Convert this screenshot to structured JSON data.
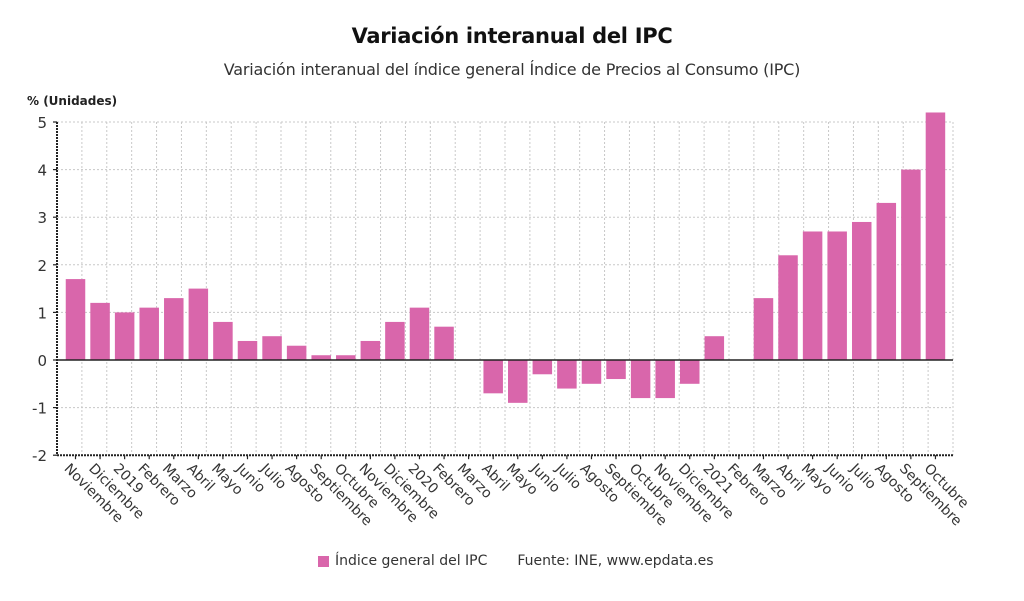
{
  "colors": {
    "bar": "#d966ab",
    "grid": "#c8c8c8",
    "axis": "#222222"
  },
  "legend": {
    "series_label": "Índice general del IPC",
    "source": "Fuente: INE, www.epdata.es"
  },
  "chart_data": {
    "type": "bar",
    "title": "Variación interanual del IPC",
    "subtitle": "Variación interanual del índice general Índice de Precios al Consumo (IPC)",
    "ylabel": "% (Unidades)",
    "xlabel": "",
    "ylim": [
      -2,
      5
    ],
    "yticks": [
      5,
      4,
      3,
      2,
      1,
      0,
      -1,
      -2
    ],
    "grid": true,
    "legend_position": "bottom",
    "categories": [
      "Noviembre",
      "Diciembre",
      "2019",
      "Febrero",
      "Marzo",
      "Abril",
      "Mayo",
      "Junio",
      "Julio",
      "Agosto",
      "Septiembre",
      "Octubre",
      "Noviembre",
      "Diciembre",
      "2020",
      "Febrero",
      "Marzo",
      "Abril",
      "Mayo",
      "Junio",
      "Julio",
      "Agosto",
      "Septiembre",
      "Octubre",
      "Noviembre",
      "Diciembre",
      "2021",
      "Febrero",
      "Marzo",
      "Abril",
      "Mayo",
      "Junio",
      "Julio",
      "Agosto",
      "Septiembre",
      "Octubre"
    ],
    "series": [
      {
        "name": "Índice general del IPC",
        "values": [
          1.7,
          1.2,
          1.0,
          1.1,
          1.3,
          1.5,
          0.8,
          0.4,
          0.5,
          0.3,
          0.1,
          0.1,
          0.4,
          0.8,
          1.1,
          0.7,
          0.0,
          -0.7,
          -0.9,
          -0.3,
          -0.6,
          -0.5,
          -0.4,
          -0.8,
          -0.8,
          -0.5,
          0.5,
          0.0,
          1.3,
          2.2,
          2.7,
          2.7,
          2.9,
          3.3,
          4.0,
          5.2
        ]
      }
    ]
  }
}
